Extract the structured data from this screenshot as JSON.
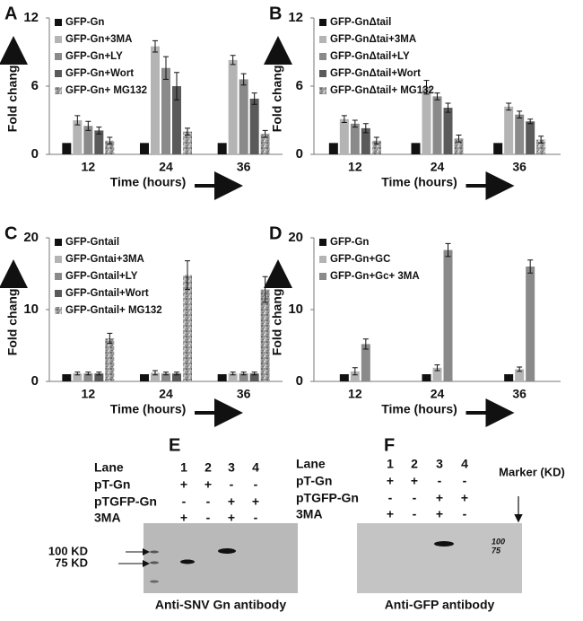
{
  "chart_data": [
    {
      "type": "bar",
      "label": "A",
      "y_label": "Fold change",
      "x_label": "Time (hours)",
      "categories": [
        "12",
        "24",
        "36"
      ],
      "ylim": [
        0,
        12
      ],
      "yticks": [
        0,
        6,
        12
      ],
      "series": [
        {
          "name": "GFP-Gn",
          "color": "#111111",
          "values": [
            1,
            1,
            1
          ],
          "errors": [
            null,
            null,
            null
          ]
        },
        {
          "name": "GFP-Gn+3MA",
          "color": "#b4b4b4",
          "values": [
            3.0,
            9.5,
            8.3
          ],
          "errors": [
            0.4,
            0.5,
            0.4
          ]
        },
        {
          "name": "GFP-Gn+LY",
          "color": "#8a8a8a",
          "values": [
            2.5,
            7.6,
            6.6
          ],
          "errors": [
            0.4,
            1.0,
            0.5
          ]
        },
        {
          "name": "GFP-Gn+Wort",
          "color": "#5a5a5a",
          "values": [
            2.1,
            6.0,
            4.9
          ],
          "errors": [
            0.3,
            1.2,
            0.5
          ]
        },
        {
          "name": "GFP-Gn+ MG132",
          "color": "#9a9a9a",
          "pattern": "speckle",
          "values": [
            1.2,
            2.0,
            1.8
          ],
          "errors": [
            0.3,
            0.3,
            0.3
          ]
        }
      ]
    },
    {
      "type": "bar",
      "label": "B",
      "y_label": "Fold change",
      "x_label": "Time (hours)",
      "categories": [
        "12",
        "24",
        "36"
      ],
      "ylim": [
        0,
        12
      ],
      "yticks": [
        0,
        6,
        12
      ],
      "series": [
        {
          "name": "GFP-GnΔtail",
          "color": "#111111",
          "values": [
            1,
            1,
            1
          ],
          "errors": [
            null,
            null,
            null
          ]
        },
        {
          "name": "GFP-GnΔtai+3MA",
          "color": "#b4b4b4",
          "values": [
            3.1,
            5.9,
            4.2
          ],
          "errors": [
            0.3,
            0.6,
            0.3
          ]
        },
        {
          "name": "GFP-GnΔtail+LY",
          "color": "#8a8a8a",
          "values": [
            2.7,
            5.1,
            3.5
          ],
          "errors": [
            0.3,
            0.3,
            0.3
          ]
        },
        {
          "name": "GFP-GnΔtail+Wort",
          "color": "#5a5a5a",
          "values": [
            2.3,
            4.1,
            2.9
          ],
          "errors": [
            0.4,
            0.4,
            0.2
          ]
        },
        {
          "name": "GFP-GnΔtail+ MG132",
          "color": "#9a9a9a",
          "pattern": "speckle",
          "values": [
            1.2,
            1.4,
            1.3
          ],
          "errors": [
            0.3,
            0.3,
            0.3
          ]
        }
      ]
    },
    {
      "type": "bar",
      "label": "C",
      "y_label": "Fold change",
      "x_label": "Time (hours)",
      "categories": [
        "12",
        "24",
        "36"
      ],
      "ylim": [
        0,
        20
      ],
      "yticks": [
        0,
        10,
        20
      ],
      "series": [
        {
          "name": "GFP-Gntail",
          "color": "#111111",
          "values": [
            1,
            1,
            1
          ],
          "errors": [
            null,
            null,
            null
          ]
        },
        {
          "name": "GFP-Gntai+3MA",
          "color": "#b4b4b4",
          "values": [
            1.1,
            1.2,
            1.1
          ],
          "errors": [
            0.2,
            0.3,
            0.2
          ]
        },
        {
          "name": "GFP-Gntail+LY",
          "color": "#8a8a8a",
          "values": [
            1.1,
            1.1,
            1.1
          ],
          "errors": [
            0.2,
            0.2,
            0.2
          ]
        },
        {
          "name": "GFP-Gntail+Wort",
          "color": "#5a5a5a",
          "values": [
            1.1,
            1.1,
            1.1
          ],
          "errors": [
            0.2,
            0.2,
            0.2
          ]
        },
        {
          "name": "GFP-Gntail+ MG132",
          "color": "#9a9a9a",
          "pattern": "speckle",
          "values": [
            6.0,
            14.8,
            12.8
          ],
          "errors": [
            0.7,
            2.0,
            1.8
          ]
        }
      ]
    },
    {
      "type": "bar",
      "label": "D",
      "y_label": "Fold change",
      "x_label": "Time (hours)",
      "categories": [
        "12",
        "24",
        "36"
      ],
      "ylim": [
        0,
        20
      ],
      "yticks": [
        0,
        10,
        20
      ],
      "series": [
        {
          "name": "GFP-Gn",
          "color": "#111111",
          "values": [
            1,
            1,
            1
          ],
          "errors": [
            null,
            null,
            null
          ]
        },
        {
          "name": "GFP-Gn+GC",
          "color": "#b4b4b4",
          "values": [
            1.4,
            1.9,
            1.7
          ],
          "errors": [
            0.5,
            0.4,
            0.3
          ]
        },
        {
          "name": "GFP-Gn+Gc+ 3MA",
          "color": "#8a8a8a",
          "values": [
            5.2,
            18.3,
            16.0
          ],
          "errors": [
            0.7,
            0.9,
            0.9
          ]
        }
      ]
    }
  ],
  "blots": [
    {
      "label": "E",
      "lane_header": "Lane",
      "lanes": [
        "1",
        "2",
        "3",
        "4"
      ],
      "rows": [
        {
          "name": "pT-Gn",
          "signs": [
            "+",
            "+",
            "-",
            "-"
          ]
        },
        {
          "name": "pTGFP-Gn",
          "signs": [
            "-",
            "-",
            "+",
            "+"
          ]
        },
        {
          "name": "3MA",
          "signs": [
            "+",
            "-",
            "+",
            "-"
          ]
        }
      ],
      "markers": [
        "100 KD",
        "75 KD"
      ],
      "caption": "Anti-SNV Gn antibody"
    },
    {
      "label": "F",
      "lane_header": "Lane",
      "lanes": [
        "1",
        "2",
        "3",
        "4"
      ],
      "rows": [
        {
          "name": "pT-Gn",
          "signs": [
            "+",
            "+",
            "-",
            "-"
          ]
        },
        {
          "name": "pTGFP-Gn",
          "signs": [
            "-",
            "-",
            "+",
            "+"
          ]
        },
        {
          "name": "3MA",
          "signs": [
            "+",
            "-",
            "+",
            "-"
          ]
        }
      ],
      "marker_label": "Marker (KD)",
      "handwritten": [
        "100",
        "75"
      ],
      "caption": "Anti-GFP antibody"
    }
  ]
}
